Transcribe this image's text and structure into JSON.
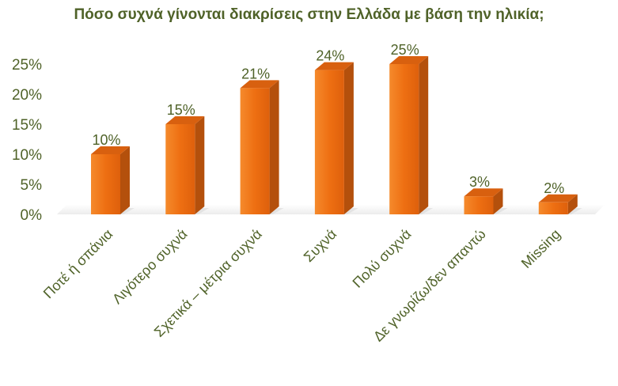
{
  "chart_data": {
    "type": "bar",
    "title": "Πόσο συχνά γίνονται διακρίσεις στην Ελλάδα με βάση την ηλικία;",
    "categories": [
      "Ποτέ ή σπάνια",
      "Λιγότερο συχνά",
      "Σχετικά – μέτρια συχνά",
      "Συχνά",
      "Πολύ συχνά",
      "Δε γνωρίζω/δεν απαντώ",
      "Missing"
    ],
    "values": [
      10,
      15,
      21,
      24,
      25,
      3,
      2
    ],
    "data_labels": [
      "10%",
      "15%",
      "21%",
      "24%",
      "25%",
      "3%",
      "2%"
    ],
    "yticks": [
      "0%",
      "5%",
      "10%",
      "15%",
      "20%",
      "25%"
    ],
    "ylim": [
      0,
      25
    ],
    "grid": false,
    "bar_style": "3d",
    "colors": {
      "bar_front": "#ee6f12",
      "bar_side": "#b4500c",
      "bar_top": "#d8600f",
      "text": "#4f6228"
    }
  }
}
